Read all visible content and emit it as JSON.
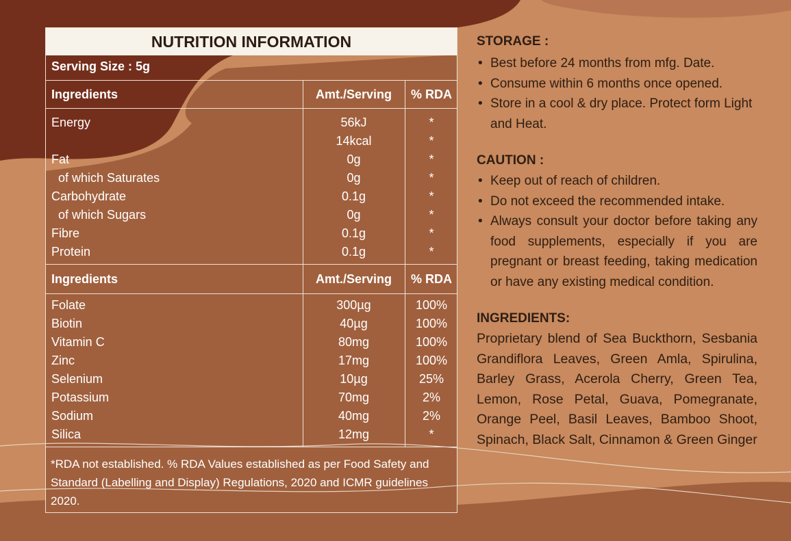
{
  "colors": {
    "background_light": "#c88a5e",
    "background_dark": "#742f1c",
    "panel_fill": "#a0603e",
    "title_fill": "#f7f2ea",
    "text_dark": "#2e1d14"
  },
  "nutrition": {
    "title": "NUTRITION INFORMATION",
    "serving_size": "Serving Size : 5g",
    "header1": {
      "name": "Ingredients",
      "amount": "Amt./Serving",
      "rda": "% RDA"
    },
    "section1": [
      {
        "name": "Energy",
        "amount": "56kJ",
        "rda": "*"
      },
      {
        "name": "",
        "amount": "14kcal",
        "rda": "*"
      },
      {
        "name": "Fat",
        "amount": "0g",
        "rda": "*"
      },
      {
        "name": "of which Saturates",
        "amount": "0g",
        "rda": "*"
      },
      {
        "name": "Carbohydrate",
        "amount": "0.1g",
        "rda": "*"
      },
      {
        "name": "of which Sugars",
        "amount": "0g",
        "rda": "*"
      },
      {
        "name": "Fibre",
        "amount": "0.1g",
        "rda": "*"
      },
      {
        "name": "Protein",
        "amount": "0.1g",
        "rda": "*"
      }
    ],
    "header2": {
      "name": "Ingredients",
      "amount": "Amt./Serving",
      "rda": "% RDA"
    },
    "section2": [
      {
        "name": "Folate",
        "amount": "300µg",
        "rda": "100%"
      },
      {
        "name": "Biotin",
        "amount": "40µg",
        "rda": "100%"
      },
      {
        "name": "Vitamin C",
        "amount": "80mg",
        "rda": "100%"
      },
      {
        "name": "Zinc",
        "amount": "17mg",
        "rda": "100%"
      },
      {
        "name": "Selenium",
        "amount": "10µg",
        "rda": "25%"
      },
      {
        "name": "Potassium",
        "amount": "70mg",
        "rda": "2%"
      },
      {
        "name": "Sodium",
        "amount": "40mg",
        "rda": "2%"
      },
      {
        "name": "Silica",
        "amount": "12mg",
        "rda": "*"
      }
    ],
    "footnote": "*RDA not established. % RDA Values established as per Food Safety and Standard (Labelling and Display) Regulations, 2020 and ICMR guidelines 2020."
  },
  "storage": {
    "heading": "STORAGE :",
    "items": [
      "Best before 24 months from mfg. Date.",
      "Consume within 6 months once opened.",
      "Store in a cool & dry place. Protect form Light and Heat."
    ]
  },
  "caution": {
    "heading": "CAUTION :",
    "items": [
      "Keep out of reach of children.",
      "Do not exceed the recommended intake.",
      "Always consult your doctor before taking any food supplements, especially if you are pregnant or breast feeding, taking medication or have any existing medical condition."
    ]
  },
  "ingredients": {
    "heading": "INGREDIENTS:",
    "text": "Proprietary blend of Sea Buckthorn, Sesbania Grandiflora Leaves, Green Amla, Spirulina, Barley Grass, Acerola Cherry, Green Tea, Lemon, Rose Petal, Guava, Pomegranate, Orange Peel, Basil Leaves, Bamboo Shoot, Spinach, Black Salt, Cinnamon & Green Ginger"
  }
}
